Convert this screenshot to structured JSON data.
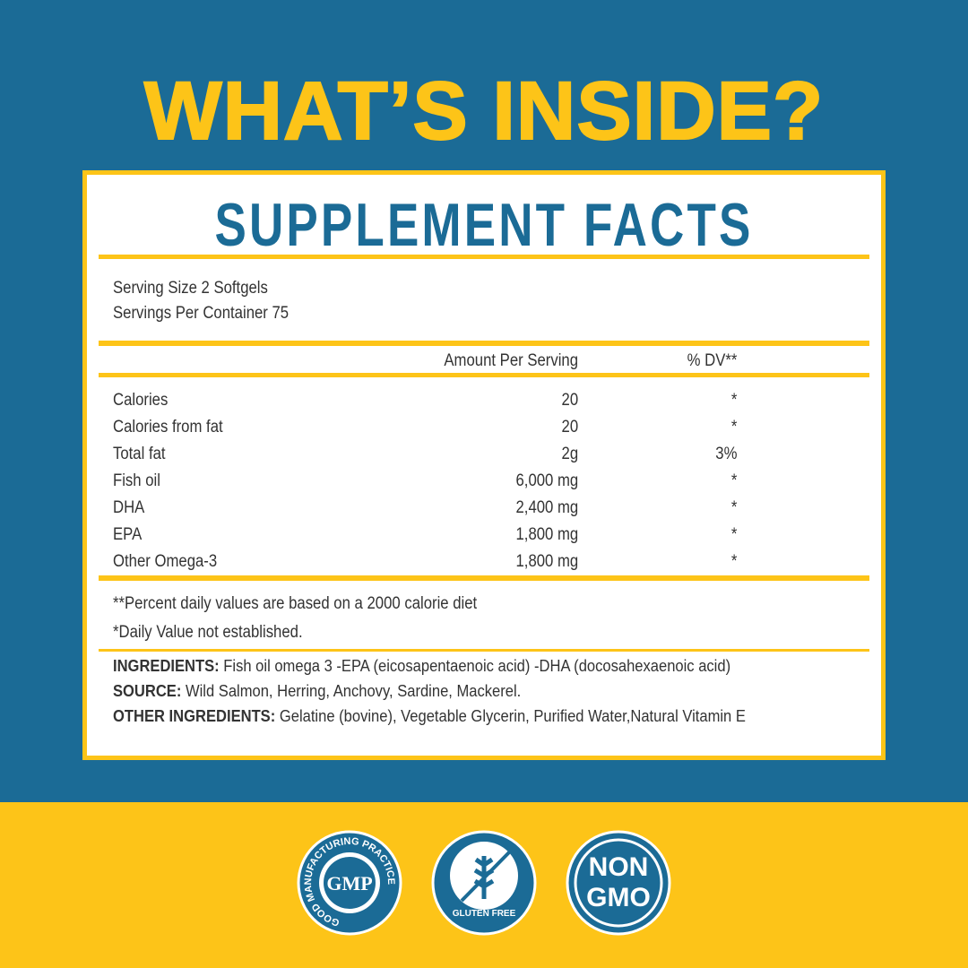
{
  "header": {
    "title": "WHAT’S INSIDE?"
  },
  "facts": {
    "title": "SUPPLEMENT FACTS",
    "serving_size": "Serving Size 2 Softgels",
    "servings_per_container": "Servings Per Container 75",
    "columns": [
      "Amount Per Serving",
      "% DV**"
    ],
    "rows": [
      [
        "Calories",
        "20",
        "*"
      ],
      [
        "Calories from fat",
        "20",
        "*"
      ],
      [
        "Total fat",
        "2g",
        "3%"
      ],
      [
        "Fish oil",
        "6,000 mg",
        "*"
      ],
      [
        "DHA",
        "2,400 mg",
        "*"
      ],
      [
        "EPA",
        "1,800 mg",
        "*"
      ],
      [
        "Other Omega-3",
        "1,800 mg",
        "*"
      ]
    ],
    "footnotes": [
      "**Percent daily values are based on a 2000 calorie diet",
      "*Daily Value not established."
    ],
    "ingredients": [
      {
        "label": "INGREDIENTS:",
        "text": "Fish oil omega 3 -EPA (eicosapentaenoic acid) -DHA (docosahexaenoic acid)"
      },
      {
        "label": "SOURCE:",
        "text": "Wild Salmon, Herring, Anchovy, Sardine, Mackerel."
      },
      {
        "label": "OTHER INGREDIENTS:",
        "text": "Gelatine (bovine), Vegetable Glycerin, Purified Water,Natural Vitamin E"
      }
    ]
  },
  "badges": {
    "gmp": {
      "ring": "GOOD MANUFACTURING PRACTICE",
      "center": "GMP"
    },
    "gluten": {
      "text": "GLUTEN FREE"
    },
    "nongmo": {
      "line1": "NON",
      "line2": "GMO"
    }
  }
}
